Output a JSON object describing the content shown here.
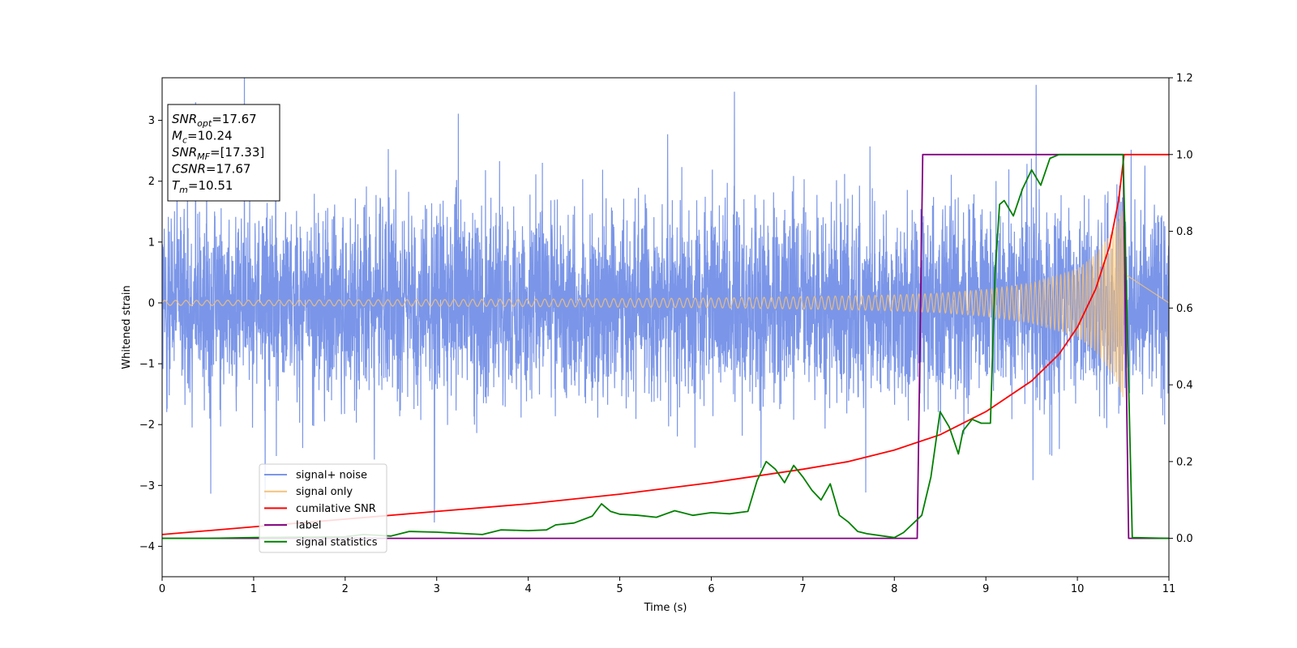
{
  "chart_data": {
    "type": "line",
    "xlabel": "Time (s)",
    "ylabel": "Whitened strain",
    "xlim": [
      0,
      11
    ],
    "ylim": [
      -4.5,
      3.7
    ],
    "y2lim": [
      -0.1,
      1.2
    ],
    "x_ticks": [
      0,
      1,
      2,
      3,
      4,
      5,
      6,
      7,
      8,
      9,
      10,
      11
    ],
    "y_ticks": [
      -4,
      -3,
      -2,
      -1,
      0,
      1,
      2,
      3
    ],
    "y_tick_labels": [
      "−4",
      "−3",
      "−2",
      "−1",
      "0",
      "1",
      "2",
      "3"
    ],
    "y2_ticks": [
      0.0,
      0.2,
      0.4,
      0.6,
      0.8,
      1.0,
      1.2
    ],
    "y2_tick_labels": [
      "0.0",
      "0.2",
      "0.4",
      "0.6",
      "0.8",
      "1.0",
      "1.2"
    ],
    "grid": false,
    "legend_position": "lower-left",
    "annotation": {
      "lines": [
        {
          "base": "SNR",
          "sub": "opt",
          "rest": "=17.67"
        },
        {
          "base": "M",
          "sub": "c",
          "rest": "=10.24"
        },
        {
          "base": "SNR",
          "sub": "MF",
          "rest": "=[17.33]"
        },
        {
          "base": "CSNR",
          "sub": "",
          "rest": "=17.67"
        },
        {
          "base": "T",
          "sub": "m",
          "rest": "=10.51"
        }
      ]
    },
    "series": [
      {
        "name": "signal+ noise",
        "color": "#7b96e8",
        "axis": "left",
        "noise_sigma": 0.78,
        "x_range": [
          0,
          11
        ]
      },
      {
        "name": "signal only",
        "color": "#f5c27a",
        "axis": "left",
        "envelope": {
          "x": [
            0,
            2,
            4,
            6,
            7,
            8,
            8.5,
            9,
            9.5,
            10,
            10.2,
            10.4,
            10.51
          ],
          "y": [
            0.04,
            0.05,
            0.06,
            0.08,
            0.1,
            0.13,
            0.16,
            0.22,
            0.33,
            0.55,
            0.8,
            1.2,
            1.6
          ]
        },
        "end_x": 10.51
      },
      {
        "name": "cumilative SNR",
        "color": "#ff0000",
        "axis": "right",
        "x": [
          0,
          1,
          2,
          3,
          4,
          5,
          6,
          7,
          7.5,
          8,
          8.5,
          9,
          9.5,
          9.8,
          10,
          10.2,
          10.35,
          10.45,
          10.51,
          11
        ],
        "y": [
          0.01,
          0.03,
          0.05,
          0.07,
          0.09,
          0.115,
          0.145,
          0.18,
          0.2,
          0.23,
          0.27,
          0.33,
          0.41,
          0.48,
          0.55,
          0.65,
          0.76,
          0.88,
          1.0,
          1.0
        ]
      },
      {
        "name": "label",
        "color": "#800080",
        "axis": "right",
        "x": [
          0,
          8.25,
          8.31,
          10.5,
          10.56,
          11
        ],
        "y": [
          0,
          0,
          1,
          1,
          0,
          0
        ]
      },
      {
        "name": "signal statistics",
        "color": "#008000",
        "axis": "right",
        "x": [
          0,
          0.5,
          1,
          1.5,
          2,
          2.2,
          2.5,
          2.7,
          3,
          3.5,
          3.7,
          4,
          4.2,
          4.3,
          4.5,
          4.7,
          4.8,
          4.9,
          5,
          5.2,
          5.4,
          5.6,
          5.8,
          6,
          6.2,
          6.4,
          6.5,
          6.6,
          6.7,
          6.8,
          6.9,
          7.0,
          7.1,
          7.2,
          7.3,
          7.4,
          7.5,
          7.6,
          7.7,
          8,
          8.1,
          8.3,
          8.4,
          8.5,
          8.6,
          8.7,
          8.75,
          8.85,
          8.95,
          9.05,
          9.1,
          9.15,
          9.2,
          9.3,
          9.4,
          9.5,
          9.6,
          9.7,
          9.8,
          9.9,
          10.0,
          10.3,
          10.5,
          10.55,
          10.6,
          11
        ],
        "y": [
          0,
          0,
          0.002,
          0.003,
          0.004,
          0.01,
          0.006,
          0.018,
          0.016,
          0.01,
          0.022,
          0.02,
          0.022,
          0.035,
          0.04,
          0.058,
          0.09,
          0.07,
          0.063,
          0.06,
          0.055,
          0.072,
          0.06,
          0.067,
          0.064,
          0.07,
          0.15,
          0.2,
          0.18,
          0.145,
          0.19,
          0.16,
          0.125,
          0.1,
          0.142,
          0.06,
          0.042,
          0.018,
          0.012,
          0.002,
          0.015,
          0.06,
          0.16,
          0.33,
          0.29,
          0.22,
          0.28,
          0.31,
          0.3,
          0.3,
          0.69,
          0.87,
          0.88,
          0.84,
          0.91,
          0.96,
          0.92,
          0.99,
          1.0,
          1.0,
          1.0,
          1.0,
          1.0,
          0.5,
          0.002,
          0.0
        ]
      }
    ]
  }
}
